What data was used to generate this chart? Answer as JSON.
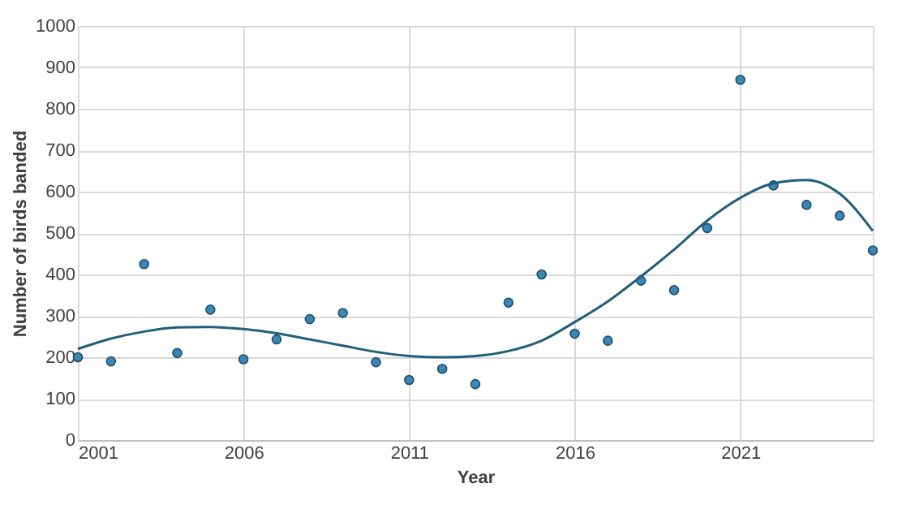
{
  "chart_data": {
    "type": "scatter",
    "xlabel": "Year",
    "ylabel": "Number of birds banded",
    "xlim": [
      2001,
      2025
    ],
    "xticks": [
      2001,
      2006,
      2011,
      2016,
      2021
    ],
    "ylim": [
      0,
      1000
    ],
    "yticks": [
      0,
      100,
      200,
      300,
      400,
      500,
      600,
      700,
      800,
      900,
      1000
    ],
    "grid": true,
    "series": [
      {
        "color": "#3a86b4",
        "marker": "circle",
        "x": [
          2001,
          2002,
          2003,
          2004,
          2005,
          2006,
          2007,
          2008,
          2009,
          2010,
          2011,
          2012,
          2013,
          2014,
          2015,
          2016,
          2017,
          2018,
          2019,
          2020,
          2021,
          2022,
          2023,
          2024,
          2025
        ],
        "values": [
          200,
          190,
          425,
          210,
          315,
          195,
          243,
          292,
          307,
          188,
          145,
          172,
          135,
          332,
          400,
          257,
          240,
          385,
          362,
          512,
          870,
          615,
          568,
          542,
          458
        ]
      },
      {
        "type": "line",
        "color": "#1f5f7a",
        "marker": "none",
        "line_style": "solid",
        "x": [
          2001,
          2002,
          2003,
          2004,
          2005,
          2006,
          2007,
          2008,
          2009,
          2010,
          2011,
          2012,
          2013,
          2014,
          2015,
          2016,
          2017,
          2018,
          2019,
          2020,
          2021,
          2022,
          2023,
          2024,
          2025
        ],
        "values": [
          220,
          245,
          262,
          272,
          273,
          268,
          258,
          243,
          228,
          213,
          203,
          200,
          203,
          215,
          240,
          285,
          335,
          395,
          460,
          530,
          585,
          620,
          628,
          595,
          505
        ]
      }
    ]
  }
}
